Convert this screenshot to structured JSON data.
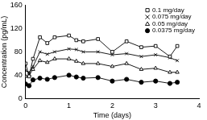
{
  "chart_data": {
    "type": "line",
    "xlabel": "Time (days)",
    "ylabel": "Concentration (pg/mL)",
    "x": [
      0,
      0.08,
      0.17,
      0.33,
      0.5,
      0.67,
      1.0,
      1.17,
      1.33,
      1.67,
      2.0,
      2.33,
      2.67,
      3.0,
      3.33,
      3.5
    ],
    "xlim": [
      0,
      4
    ],
    "xticks": [
      0,
      1,
      2,
      3,
      4
    ],
    "ylim": [
      0,
      160
    ],
    "yticks": [
      0,
      40,
      80,
      120,
      160
    ],
    "grid": false,
    "legend": "upper right",
    "series": [
      {
        "name": "0.1 mg/day",
        "color": "#000000",
        "marker": "square-open",
        "values": [
          60,
          38,
          68,
          105,
          95,
          105,
          108,
          100,
          98,
          102,
          80,
          98,
          88,
          90,
          72,
          90
        ]
      },
      {
        "name": "0.075 mg/day",
        "color": "#000000",
        "marker": "x",
        "values": [
          48,
          45,
          55,
          80,
          76,
          80,
          85,
          84,
          80,
          80,
          75,
          77,
          72,
          75,
          70,
          65
        ]
      },
      {
        "name": "0.05 mg/day",
        "color": "#000000",
        "marker": "triangle-open",
        "values": [
          38,
          40,
          50,
          65,
          62,
          68,
          68,
          64,
          60,
          60,
          55,
          60,
          50,
          52,
          45,
          45
        ]
      },
      {
        "name": "0.0375 mg/day",
        "color": "#000000",
        "marker": "circle",
        "values": [
          25,
          22,
          32,
          35,
          33,
          36,
          40,
          37,
          35,
          36,
          30,
          33,
          28,
          30,
          26,
          28
        ]
      }
    ]
  }
}
